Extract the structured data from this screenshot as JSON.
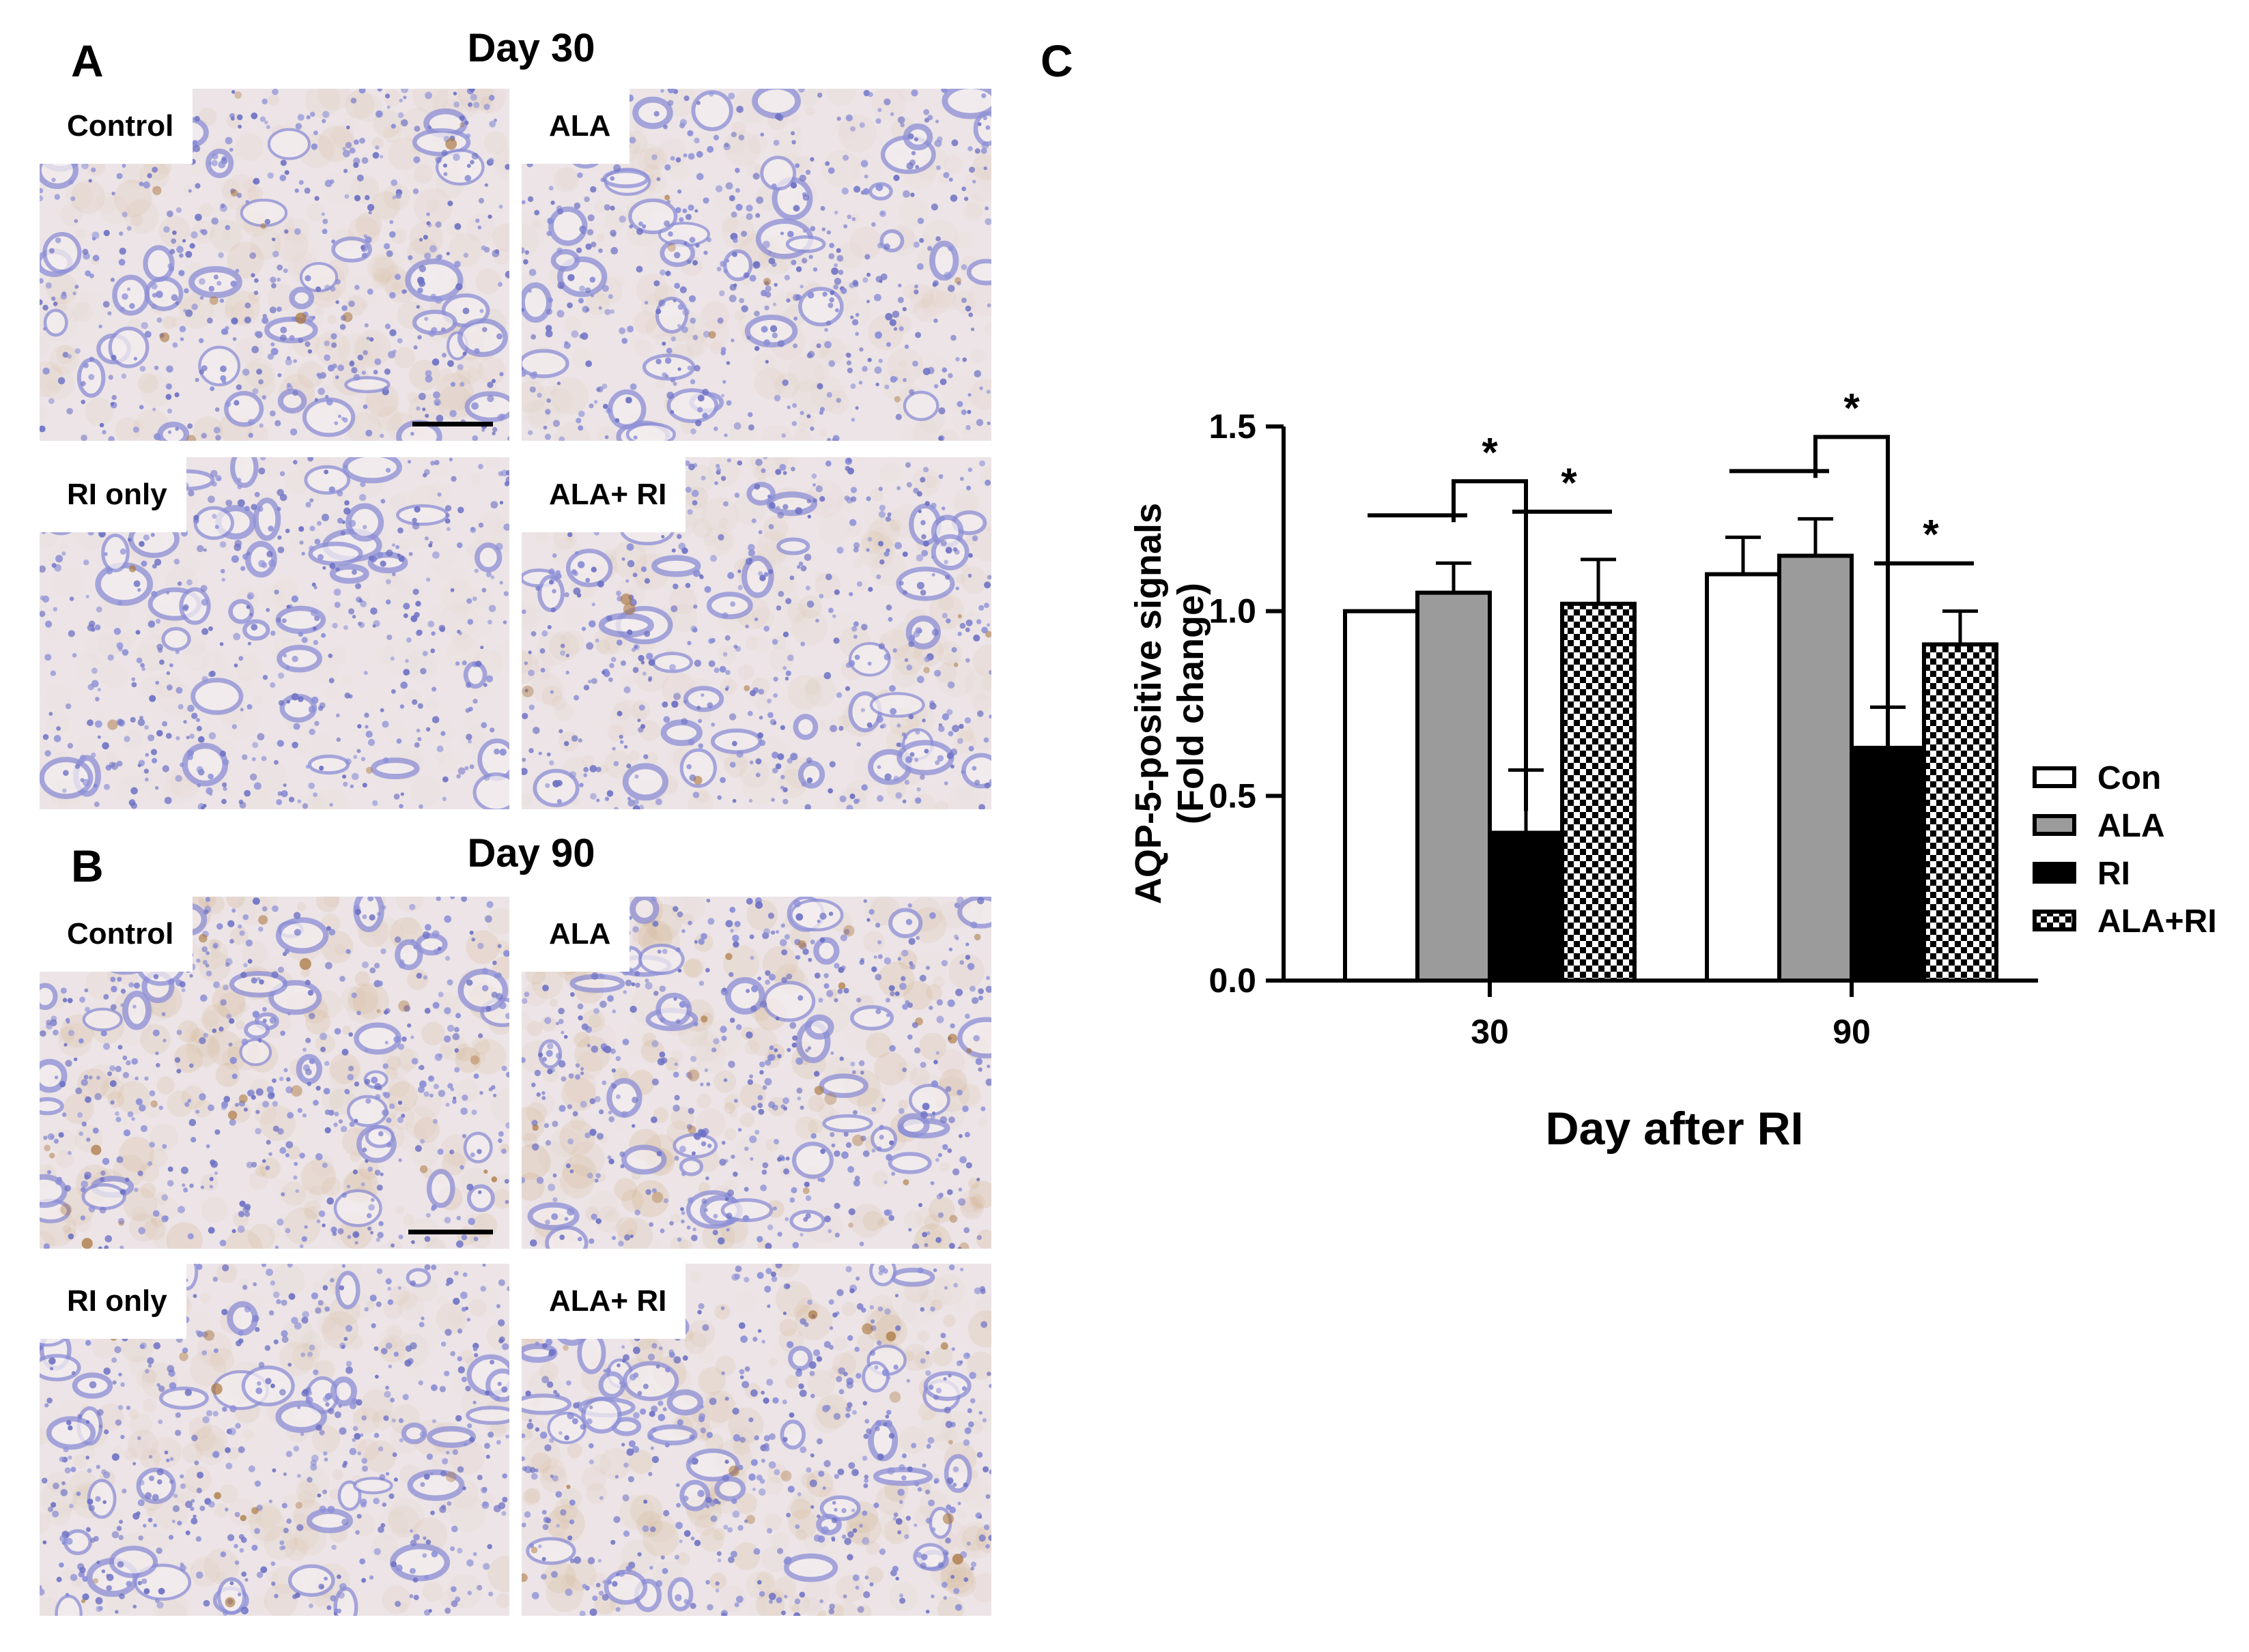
{
  "panels": {
    "a": {
      "letter": "A",
      "title": "Day 30"
    },
    "b": {
      "letter": "B",
      "title": "Day 90"
    },
    "c": {
      "letter": "C"
    }
  },
  "micrographs": [
    {
      "label": "Control",
      "stain": 0.3
    },
    {
      "label": "ALA",
      "stain": 0.2
    },
    {
      "label": "RI only",
      "stain": 0.07
    },
    {
      "label": "ALA+ RI",
      "stain": 0.25
    },
    {
      "label": "Control",
      "stain": 0.5
    },
    {
      "label": "ALA",
      "stain": 0.55
    },
    {
      "label": "RI only",
      "stain": 0.3
    },
    {
      "label": "ALA+ RI",
      "stain": 0.45
    }
  ],
  "chart_data": {
    "type": "bar",
    "categories": [
      "30",
      "90"
    ],
    "xlabel": "Day after RI",
    "ylabel": "AQP-5-positive signals",
    "ylabel2": "(Fold change)",
    "ylim": [
      0,
      1.5
    ],
    "yticks": [
      "0.0",
      "0.5",
      "1.0",
      "1.5"
    ],
    "legend_position": "right",
    "series": [
      {
        "name": "Con",
        "values": [
          1.0,
          1.1
        ],
        "errors": [
          0.0,
          0.1
        ],
        "fill": "white"
      },
      {
        "name": "ALA",
        "values": [
          1.05,
          1.15
        ],
        "errors": [
          0.08,
          0.1
        ],
        "fill": "gray"
      },
      {
        "name": "RI",
        "values": [
          0.4,
          0.63
        ],
        "errors": [
          0.17,
          0.11
        ],
        "fill": "black"
      },
      {
        "name": "ALA+RI",
        "values": [
          1.02,
          0.91
        ],
        "errors": [
          0.12,
          0.09
        ],
        "fill": "checker"
      }
    ],
    "significance": [
      {
        "category": 0,
        "symbol": "*",
        "type": "bracket",
        "from": 1,
        "to": 2
      },
      {
        "category": 0,
        "symbol": "*",
        "type": "line",
        "from": 2,
        "to": 3
      },
      {
        "category": 0,
        "type": "line",
        "from": 0,
        "to": 1
      },
      {
        "category": 1,
        "symbol": "*",
        "type": "bracket",
        "from": 1,
        "to": 2
      },
      {
        "category": 1,
        "symbol": "*",
        "type": "line",
        "from": 2,
        "to": 3
      },
      {
        "category": 1,
        "type": "line",
        "from": 0,
        "to": 1
      }
    ]
  }
}
